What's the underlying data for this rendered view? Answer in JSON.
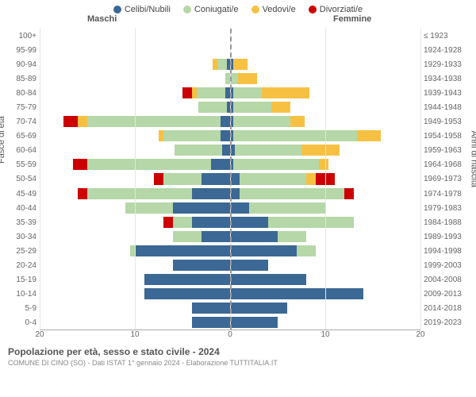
{
  "legend": {
    "items": [
      {
        "label": "Celibi/Nubili",
        "color": "#3b6894"
      },
      {
        "label": "Coniugati/e",
        "color": "#b6d7a8"
      },
      {
        "label": "Vedovi/e",
        "color": "#f6c143"
      },
      {
        "label": "Divorziati/e",
        "color": "#cc0000"
      }
    ]
  },
  "headers": {
    "male": "Maschi",
    "female": "Femmine"
  },
  "axis": {
    "left_label": "Fasce di età",
    "right_label": "Anni di nascita",
    "xmax": 20,
    "xticks_left": [
      20,
      10,
      0
    ],
    "xticks_right": [
      0,
      10,
      20
    ]
  },
  "title": "Popolazione per età, sesso e stato civile - 2024",
  "subtitle": "COMUNE DI CINO (SO) - Dati ISTAT 1° gennaio 2024 - Elaborazione TUTTITALIA.IT",
  "colors": {
    "single": "#3b6894",
    "married": "#b6d7a8",
    "widowed": "#f6c143",
    "divorced": "#cc0000"
  },
  "rows": [
    {
      "age": "100+",
      "birth": "≤ 1923",
      "m": {
        "s": 0,
        "c": 0,
        "w": 0,
        "d": 0
      },
      "f": {
        "s": 0,
        "c": 0,
        "w": 0,
        "d": 0
      }
    },
    {
      "age": "95-99",
      "birth": "1924-1928",
      "m": {
        "s": 0,
        "c": 0,
        "w": 0,
        "d": 0
      },
      "f": {
        "s": 0,
        "c": 0,
        "w": 0,
        "d": 0
      }
    },
    {
      "age": "90-94",
      "birth": "1929-1933",
      "m": {
        "s": 0.3,
        "c": 1,
        "w": 0.5,
        "d": 0
      },
      "f": {
        "s": 0.3,
        "c": 0,
        "w": 1.5,
        "d": 0
      }
    },
    {
      "age": "85-89",
      "birth": "1934-1938",
      "m": {
        "s": 0,
        "c": 0.5,
        "w": 0,
        "d": 0
      },
      "f": {
        "s": 0,
        "c": 0.8,
        "w": 2,
        "d": 0
      }
    },
    {
      "age": "80-84",
      "birth": "1939-1943",
      "m": {
        "s": 0.5,
        "c": 3,
        "w": 0.5,
        "d": 1
      },
      "f": {
        "s": 0.3,
        "c": 3,
        "w": 5,
        "d": 0
      }
    },
    {
      "age": "75-79",
      "birth": "1944-1948",
      "m": {
        "s": 0.3,
        "c": 3,
        "w": 0,
        "d": 0
      },
      "f": {
        "s": 0.3,
        "c": 4,
        "w": 2,
        "d": 0
      }
    },
    {
      "age": "70-74",
      "birth": "1949-1953",
      "m": {
        "s": 1,
        "c": 14,
        "w": 1,
        "d": 1.5
      },
      "f": {
        "s": 0.3,
        "c": 6,
        "w": 1.5,
        "d": 0
      }
    },
    {
      "age": "65-69",
      "birth": "1954-1958",
      "m": {
        "s": 1,
        "c": 6,
        "w": 0.5,
        "d": 0
      },
      "f": {
        "s": 0.3,
        "c": 13,
        "w": 2.5,
        "d": 0
      }
    },
    {
      "age": "60-64",
      "birth": "1959-1963",
      "m": {
        "s": 0.8,
        "c": 5,
        "w": 0,
        "d": 0
      },
      "f": {
        "s": 0.5,
        "c": 7,
        "w": 4,
        "d": 0
      }
    },
    {
      "age": "55-59",
      "birth": "1964-1968",
      "m": {
        "s": 2,
        "c": 13,
        "w": 0,
        "d": 1.5
      },
      "f": {
        "s": 0.3,
        "c": 9,
        "w": 1,
        "d": 0
      }
    },
    {
      "age": "50-54",
      "birth": "1969-1973",
      "m": {
        "s": 3,
        "c": 4,
        "w": 0,
        "d": 1
      },
      "f": {
        "s": 1,
        "c": 7,
        "w": 1,
        "d": 2
      }
    },
    {
      "age": "45-49",
      "birth": "1974-1978",
      "m": {
        "s": 4,
        "c": 11,
        "w": 0,
        "d": 1
      },
      "f": {
        "s": 1,
        "c": 11,
        "w": 0,
        "d": 1
      }
    },
    {
      "age": "40-44",
      "birth": "1979-1983",
      "m": {
        "s": 6,
        "c": 5,
        "w": 0,
        "d": 0
      },
      "f": {
        "s": 2,
        "c": 8,
        "w": 0,
        "d": 0
      }
    },
    {
      "age": "35-39",
      "birth": "1984-1988",
      "m": {
        "s": 4,
        "c": 2,
        "w": 0,
        "d": 1
      },
      "f": {
        "s": 4,
        "c": 9,
        "w": 0,
        "d": 0
      }
    },
    {
      "age": "30-34",
      "birth": "1989-1993",
      "m": {
        "s": 3,
        "c": 3,
        "w": 0,
        "d": 0
      },
      "f": {
        "s": 5,
        "c": 3,
        "w": 0,
        "d": 0
      }
    },
    {
      "age": "25-29",
      "birth": "1994-1998",
      "m": {
        "s": 10,
        "c": 0.5,
        "w": 0,
        "d": 0
      },
      "f": {
        "s": 7,
        "c": 2,
        "w": 0,
        "d": 0
      }
    },
    {
      "age": "20-24",
      "birth": "1999-2003",
      "m": {
        "s": 6,
        "c": 0,
        "w": 0,
        "d": 0
      },
      "f": {
        "s": 4,
        "c": 0,
        "w": 0,
        "d": 0
      }
    },
    {
      "age": "15-19",
      "birth": "2004-2008",
      "m": {
        "s": 9,
        "c": 0,
        "w": 0,
        "d": 0
      },
      "f": {
        "s": 8,
        "c": 0,
        "w": 0,
        "d": 0
      }
    },
    {
      "age": "10-14",
      "birth": "2009-2013",
      "m": {
        "s": 9,
        "c": 0,
        "w": 0,
        "d": 0
      },
      "f": {
        "s": 14,
        "c": 0,
        "w": 0,
        "d": 0
      }
    },
    {
      "age": "5-9",
      "birth": "2014-2018",
      "m": {
        "s": 4,
        "c": 0,
        "w": 0,
        "d": 0
      },
      "f": {
        "s": 6,
        "c": 0,
        "w": 0,
        "d": 0
      }
    },
    {
      "age": "0-4",
      "birth": "2019-2023",
      "m": {
        "s": 4,
        "c": 0,
        "w": 0,
        "d": 0
      },
      "f": {
        "s": 5,
        "c": 0,
        "w": 0,
        "d": 0
      }
    }
  ]
}
